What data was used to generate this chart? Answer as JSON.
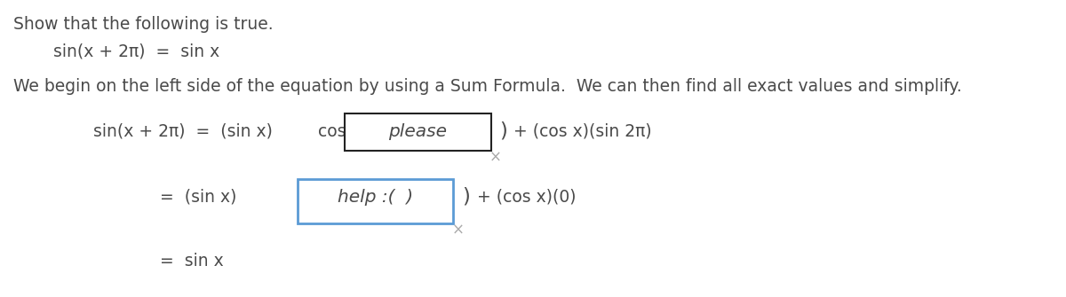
{
  "bg_color": "#ffffff",
  "text_color": "#4a4a4a",
  "line1": "Show that the following is true.",
  "line2": "sin(x + 2π)  =  sin x",
  "line3": "We begin on the left side of the equation by using a Sum Formula.  We can then find all exact values and simplify.",
  "box1_color": "#222222",
  "box2_color": "#5b9bd5",
  "x_mark_color": "#aaaaaa",
  "fs_body": 13.5,
  "fs_eq": 13.5,
  "fs_italic": 14.5
}
